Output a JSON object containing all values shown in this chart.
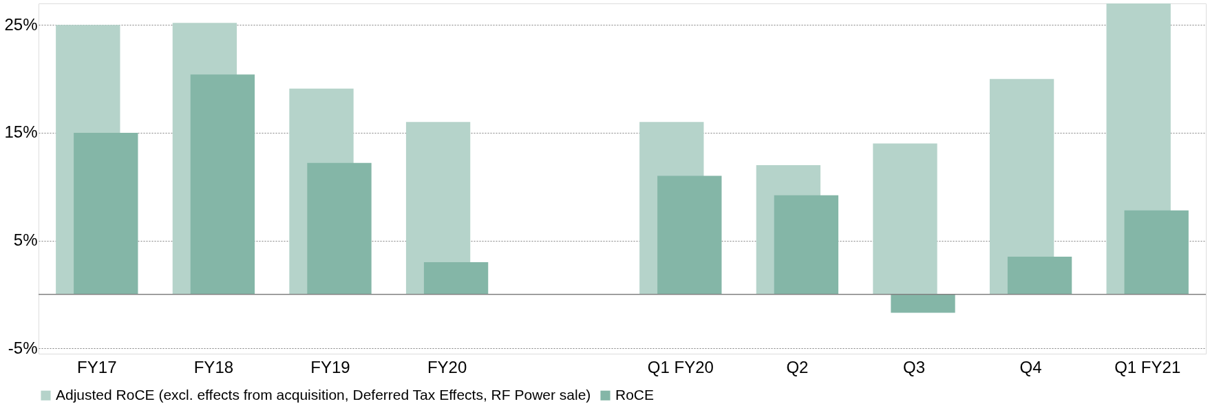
{
  "chart_data": {
    "type": "bar",
    "categories": [
      "FY17",
      "FY18",
      "FY19",
      "FY20",
      null,
      "Q1 FY20",
      "Q2",
      "Q3",
      "Q4",
      "Q1 FY21"
    ],
    "series": [
      {
        "name": "Adjusted RoCE (excl. effects from acquisition, Deferred Tax Effects, RF Power sale)",
        "color": "#b5d3ca",
        "values": [
          25,
          25.2,
          19.1,
          16,
          null,
          16,
          12,
          14,
          20,
          27
        ]
      },
      {
        "name": "RoCE",
        "color": "#84b6a7",
        "values": [
          15,
          20.4,
          12.2,
          3.0,
          null,
          11.0,
          9.2,
          -1.7,
          3.5,
          7.8
        ]
      }
    ],
    "ylim": [
      -5.5,
      27
    ],
    "yticks": [
      {
        "value": -5,
        "label": "-5%"
      },
      {
        "value": 5,
        "label": "5%"
      },
      {
        "value": 15,
        "label": "15%"
      },
      {
        "value": 25,
        "label": "25%"
      }
    ],
    "grid": "y",
    "legend": "bottom",
    "ref_lines": [
      {
        "axis": "y",
        "value": 0,
        "color": "#808080"
      }
    ]
  }
}
